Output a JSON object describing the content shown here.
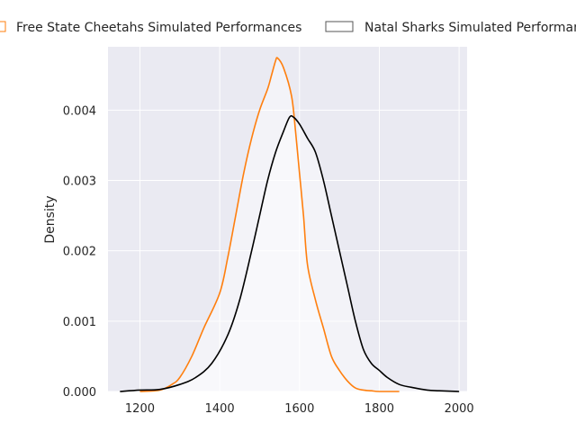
{
  "chart_data": {
    "type": "line",
    "xlabel": "",
    "ylabel": "Density",
    "xlim": [
      1120,
      2020
    ],
    "ylim": [
      0,
      0.0049
    ],
    "xticks": [
      1200,
      1400,
      1600,
      1800,
      2000
    ],
    "yticks": [
      "0.000",
      "0.001",
      "0.002",
      "0.003",
      "0.004"
    ],
    "grid": true,
    "legend_position": "top",
    "series": [
      {
        "name": "Free State Cheetahs Simulated Performances",
        "color": "#ff7f0e",
        "x": [
          1200,
          1250,
          1280,
          1300,
          1330,
          1360,
          1400,
          1420,
          1440,
          1460,
          1480,
          1500,
          1520,
          1530,
          1540,
          1545,
          1560,
          1580,
          1590,
          1600,
          1610,
          1620,
          1640,
          1660,
          1680,
          1700,
          1720,
          1740,
          1760,
          1780,
          1800,
          1850
        ],
        "y": [
          0,
          2e-05,
          0.0001,
          0.0002,
          0.0005,
          0.0009,
          0.0014,
          0.0019,
          0.0025,
          0.0031,
          0.0036,
          0.004,
          0.0043,
          0.0045,
          0.0047,
          0.00474,
          0.0046,
          0.0042,
          0.0037,
          0.0031,
          0.0025,
          0.0018,
          0.0013,
          0.0009,
          0.0005,
          0.0003,
          0.00015,
          5e-05,
          2e-05,
          1e-05,
          0,
          0
        ]
      },
      {
        "name": "Natal Sharks Simulated Performances",
        "color": "#000000",
        "x": [
          1150,
          1200,
          1250,
          1300,
          1340,
          1380,
          1420,
          1450,
          1480,
          1500,
          1520,
          1540,
          1560,
          1575,
          1585,
          1600,
          1620,
          1640,
          1660,
          1680,
          1700,
          1720,
          1740,
          1760,
          1780,
          1800,
          1820,
          1850,
          1880,
          1920,
          1950,
          2000
        ],
        "y": [
          0,
          2e-05,
          3e-05,
          0.0001,
          0.0002,
          0.0004,
          0.0008,
          0.0013,
          0.002,
          0.0025,
          0.003,
          0.0034,
          0.0037,
          0.0039,
          0.0039,
          0.0038,
          0.0036,
          0.0034,
          0.003,
          0.0025,
          0.002,
          0.0015,
          0.001,
          0.0006,
          0.0004,
          0.0003,
          0.0002,
          0.0001,
          6e-05,
          2e-05,
          1e-05,
          0
        ]
      }
    ]
  }
}
